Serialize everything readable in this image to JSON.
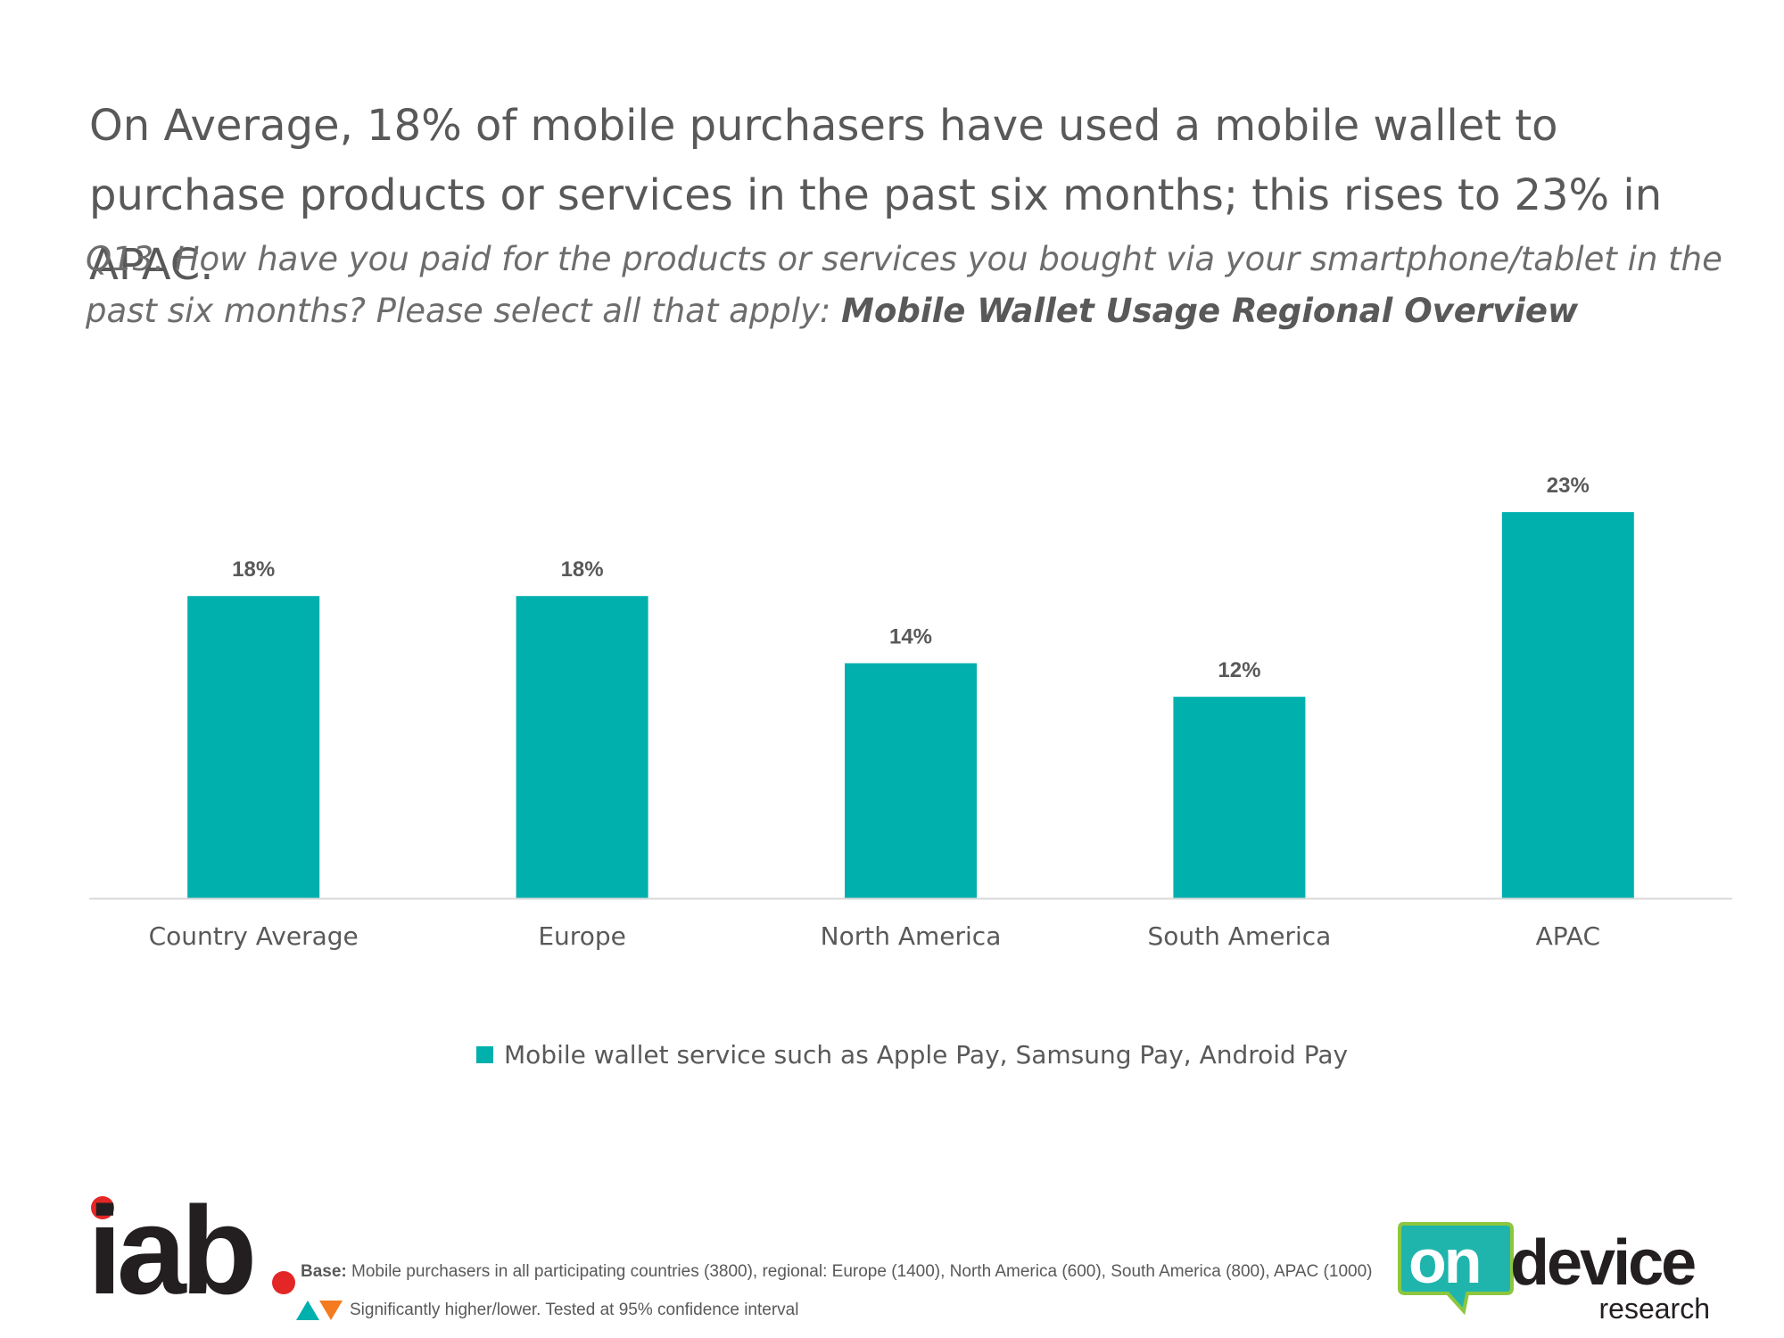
{
  "headline": "On Average, 18% of mobile purchasers have used a mobile wallet to purchase products or services in the past six months; this rises to 23% in APAC.",
  "question": {
    "text": "Q13. How have you paid for the products or services you bought via your smartphone/tablet in the past six months? Please select all that apply: ",
    "bold": "Mobile Wallet Usage Regional Overview"
  },
  "colors": {
    "bar": "#00b0ad",
    "axis": "#d9d9d9",
    "text": "#595959",
    "iab_red": "#e32726",
    "od_teal": "#1fb5ad",
    "od_green": "#8dc63f"
  },
  "chart_data": {
    "type": "bar",
    "categories": [
      "Country Average",
      "Europe",
      "North America",
      "South America",
      "APAC"
    ],
    "series": [
      {
        "name": "Mobile wallet service such as Apple Pay, Samsung Pay, Android Pay",
        "values": [
          18,
          18,
          14,
          12,
          23
        ]
      }
    ],
    "data_labels": [
      "18%",
      "18%",
      "14%",
      "12%",
      "23%"
    ],
    "ylim": [
      0,
      28
    ],
    "legend": "bottom",
    "grid": false
  },
  "legend_label": "Mobile wallet service such as Apple Pay, Samsung Pay, Android Pay",
  "footer": {
    "base_label": "Base:",
    "base_text": " Mobile purchasers in all participating countries (3800), regional:  Europe (1400), North America (600), South America (800), APAC (1000)",
    "significance": "Significantly higher/lower. Tested at 95% confidence interval"
  },
  "logos": {
    "iab": {
      "icon": "iab-logo",
      "text": "iab"
    },
    "ondevice": {
      "icon": "ondevice-research-logo",
      "text_on": "on",
      "text_device": "device",
      "text_research": "research"
    }
  }
}
